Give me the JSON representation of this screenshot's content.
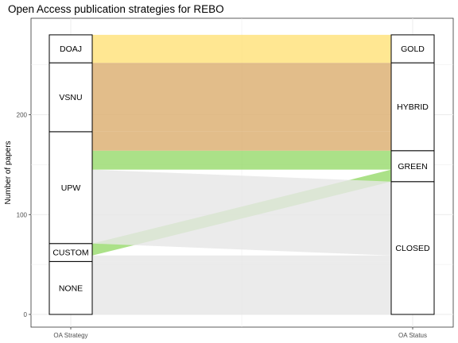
{
  "chart_data": {
    "type": "alluvial",
    "title": "Open Access publication strategies for REBO",
    "xlabel": "",
    "ylabel": "Number of papers",
    "ylim": [
      0,
      280
    ],
    "yticks": [
      0,
      100,
      200
    ],
    "grid": true,
    "axes": [
      "OA Strategy",
      "OA Status"
    ],
    "strata": {
      "OA Strategy": [
        {
          "label": "NONE",
          "value": 53
        },
        {
          "label": "CUSTOM",
          "value": 18
        },
        {
          "label": "UPW",
          "value": 112
        },
        {
          "label": "VSNU",
          "value": 69
        },
        {
          "label": "DOAJ",
          "value": 28
        }
      ],
      "OA Status": [
        {
          "label": "CLOSED",
          "value": 133
        },
        {
          "label": "GREEN",
          "value": 31
        },
        {
          "label": "HYBRID",
          "value": 88
        },
        {
          "label": "GOLD",
          "value": 28
        }
      ]
    },
    "flows": [
      {
        "from": "NONE",
        "to": "CLOSED",
        "value": 53,
        "color": "#e6e6e6"
      },
      {
        "from": "CUSTOM",
        "to": "CLOSED",
        "value": 6,
        "color": "#e6e6e6"
      },
      {
        "from": "CUSTOM",
        "to": "GREEN",
        "value": 12,
        "color": "#98db6e"
      },
      {
        "from": "UPW",
        "to": "CLOSED",
        "value": 74,
        "color": "#e6e6e6"
      },
      {
        "from": "UPW",
        "to": "GREEN",
        "value": 19,
        "color": "#98db6e"
      },
      {
        "from": "UPW",
        "to": "HYBRID",
        "value": 19,
        "color": "#dcaf70"
      },
      {
        "from": "VSNU",
        "to": "HYBRID",
        "value": 69,
        "color": "#dcaf70"
      },
      {
        "from": "DOAJ",
        "to": "GOLD",
        "value": 28,
        "color": "#ffe27a"
      }
    ]
  }
}
